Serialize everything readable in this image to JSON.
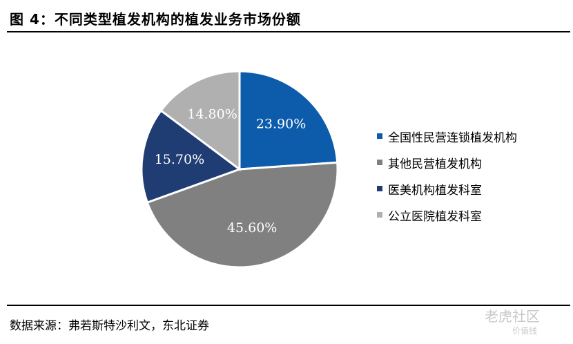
{
  "title": "图 4：不同类型植发机构的植发业务市场份额",
  "source": "数据来源：弗若斯特沙利文，东北证券",
  "watermark": {
    "text": "老虎社区",
    "sub": "价值线"
  },
  "chart_data": {
    "type": "pie",
    "title": "图 4：不同类型植发机构的植发业务市场份额",
    "legend_position": "right",
    "slices": [
      {
        "label": "全国性民营连锁植发机构",
        "value": 23.9,
        "display": "23.90%",
        "color": "#0D5CAB",
        "label_color": "#ffffff"
      },
      {
        "label": "其他民营植发机构",
        "value": 45.6,
        "display": "45.60%",
        "color": "#808080",
        "label_color": "#ffffff"
      },
      {
        "label": "医美机构植发科室",
        "value": 15.7,
        "display": "15.70%",
        "color": "#1F3D73",
        "label_color": "#ffffff"
      },
      {
        "label": "公立医院植发科室",
        "value": 14.8,
        "display": "14.80%",
        "color": "#B0B0B0",
        "label_color": "#ffffff"
      }
    ]
  }
}
